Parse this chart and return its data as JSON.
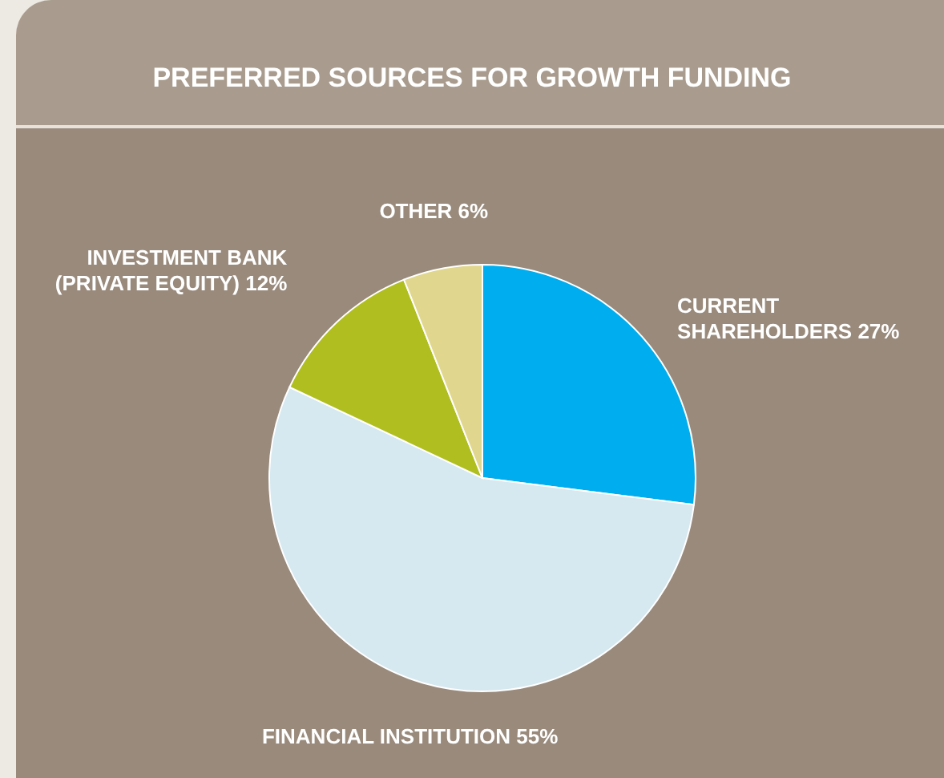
{
  "chart_data": {
    "type": "pie",
    "title": "PREFERRED SOURCES FOR GROWTH FUNDING",
    "categories": [
      "CURRENT SHAREHOLDERS",
      "FINANCIAL INSTITUTION",
      "INVESTMENT BANK (PRIVATE EQUITY)",
      "OTHER"
    ],
    "values": [
      27,
      55,
      12,
      6
    ],
    "colors": [
      "#00aeef",
      "#d6e8f0",
      "#b0bf1f",
      "#e0d68e"
    ],
    "value_labels": [
      "27%",
      "55%",
      "12%",
      "6%"
    ]
  }
}
